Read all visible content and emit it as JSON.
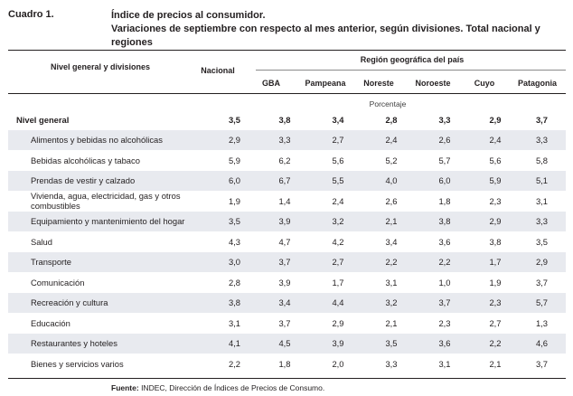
{
  "cuadro_label": "Cuadro 1.",
  "title": "Índice de precios al consumidor.",
  "subtitle": "Variaciones de septiembre con respecto al mes anterior, según divisiones. Total nacional y regiones",
  "header": {
    "row_label": "Nivel general y divisiones",
    "nacional": "Nacional",
    "region_group": "Región geográfica del país",
    "regions": [
      "GBA",
      "Pampeana",
      "Noreste",
      "Noroeste",
      "Cuyo",
      "Patagonia"
    ],
    "unit": "Porcentaje"
  },
  "rows": [
    {
      "label": "Nivel general",
      "values": [
        "3,5",
        "3,8",
        "3,4",
        "2,8",
        "3,3",
        "2,9",
        "3,7"
      ]
    },
    {
      "label": "Alimentos y bebidas no alcohólicas",
      "values": [
        "2,9",
        "3,3",
        "2,7",
        "2,4",
        "2,6",
        "2,4",
        "3,3"
      ]
    },
    {
      "label": "Bebidas alcohólicas y tabaco",
      "values": [
        "5,9",
        "6,2",
        "5,6",
        "5,2",
        "5,7",
        "5,6",
        "5,8"
      ]
    },
    {
      "label": "Prendas de vestir y calzado",
      "values": [
        "6,0",
        "6,7",
        "5,5",
        "4,0",
        "6,0",
        "5,9",
        "5,1"
      ]
    },
    {
      "label": "Vivienda, agua, electricidad, gas y otros combustibles",
      "values": [
        "1,9",
        "1,4",
        "2,4",
        "2,6",
        "1,8",
        "2,3",
        "3,1"
      ]
    },
    {
      "label": "Equipamiento y mantenimiento del hogar",
      "values": [
        "3,5",
        "3,9",
        "3,2",
        "2,1",
        "3,8",
        "2,9",
        "3,3"
      ]
    },
    {
      "label": "Salud",
      "values": [
        "4,3",
        "4,7",
        "4,2",
        "3,4",
        "3,6",
        "3,8",
        "3,5"
      ]
    },
    {
      "label": "Transporte",
      "values": [
        "3,0",
        "3,7",
        "2,7",
        "2,2",
        "2,2",
        "1,7",
        "2,9"
      ]
    },
    {
      "label": "Comunicación",
      "values": [
        "2,8",
        "3,9",
        "1,7",
        "3,1",
        "1,0",
        "1,9",
        "3,7"
      ]
    },
    {
      "label": "Recreación y cultura",
      "values": [
        "3,8",
        "3,4",
        "4,4",
        "3,2",
        "3,7",
        "2,3",
        "5,7"
      ]
    },
    {
      "label": "Educación",
      "values": [
        "3,1",
        "3,7",
        "2,9",
        "2,1",
        "2,3",
        "2,7",
        "1,3"
      ]
    },
    {
      "label": "Restaurantes y hoteles",
      "values": [
        "4,1",
        "4,5",
        "3,9",
        "3,5",
        "3,6",
        "2,2",
        "4,6"
      ]
    },
    {
      "label": "Bienes y servicios varios",
      "values": [
        "2,2",
        "1,8",
        "2,0",
        "3,3",
        "3,1",
        "2,1",
        "3,7"
      ]
    }
  ],
  "source": {
    "prefix": "Fuente:",
    "text": " INDEC, Dirección de Índices de Precios de Consumo."
  },
  "colors": {
    "stripe": "#e8eaef",
    "text": "#231f20"
  }
}
